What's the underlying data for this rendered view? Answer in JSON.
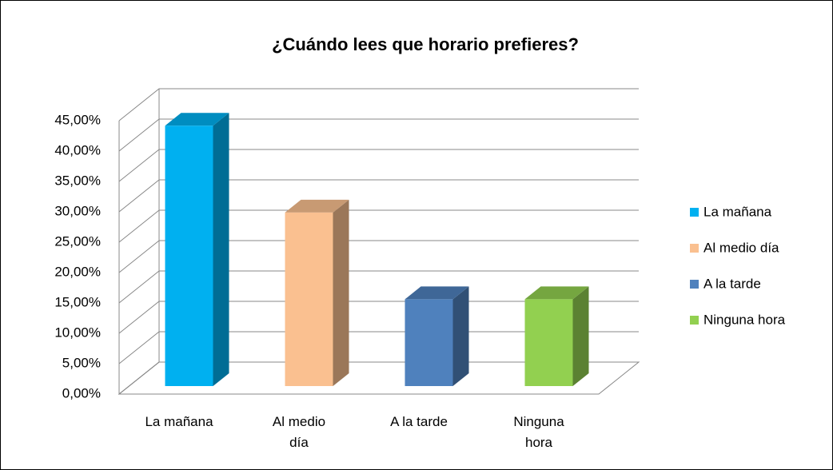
{
  "chart_data": {
    "type": "bar3d",
    "title": "¿Cuándo lees que horario prefieres?",
    "categories": [
      "La mañana",
      "Al medio día",
      "A la tarde",
      "Ninguna hora"
    ],
    "values": [
      42.86,
      28.57,
      14.29,
      14.29
    ],
    "colors": [
      "#00b0f0",
      "#fac090",
      "#4f81bd",
      "#92d050"
    ],
    "ylim": [
      0,
      45
    ],
    "yticks": [
      {
        "value": 0,
        "label": "0,00%"
      },
      {
        "value": 5,
        "label": "5,00%"
      },
      {
        "value": 10,
        "label": "10,00%"
      },
      {
        "value": 15,
        "label": "15,00%"
      },
      {
        "value": 20,
        "label": "20,00%"
      },
      {
        "value": 25,
        "label": "25,00%"
      },
      {
        "value": 30,
        "label": "30,00%"
      },
      {
        "value": 35,
        "label": "35,00%"
      },
      {
        "value": 40,
        "label": "40,00%"
      },
      {
        "value": 45,
        "label": "45,00%"
      }
    ],
    "grid": true,
    "legend": "right"
  }
}
